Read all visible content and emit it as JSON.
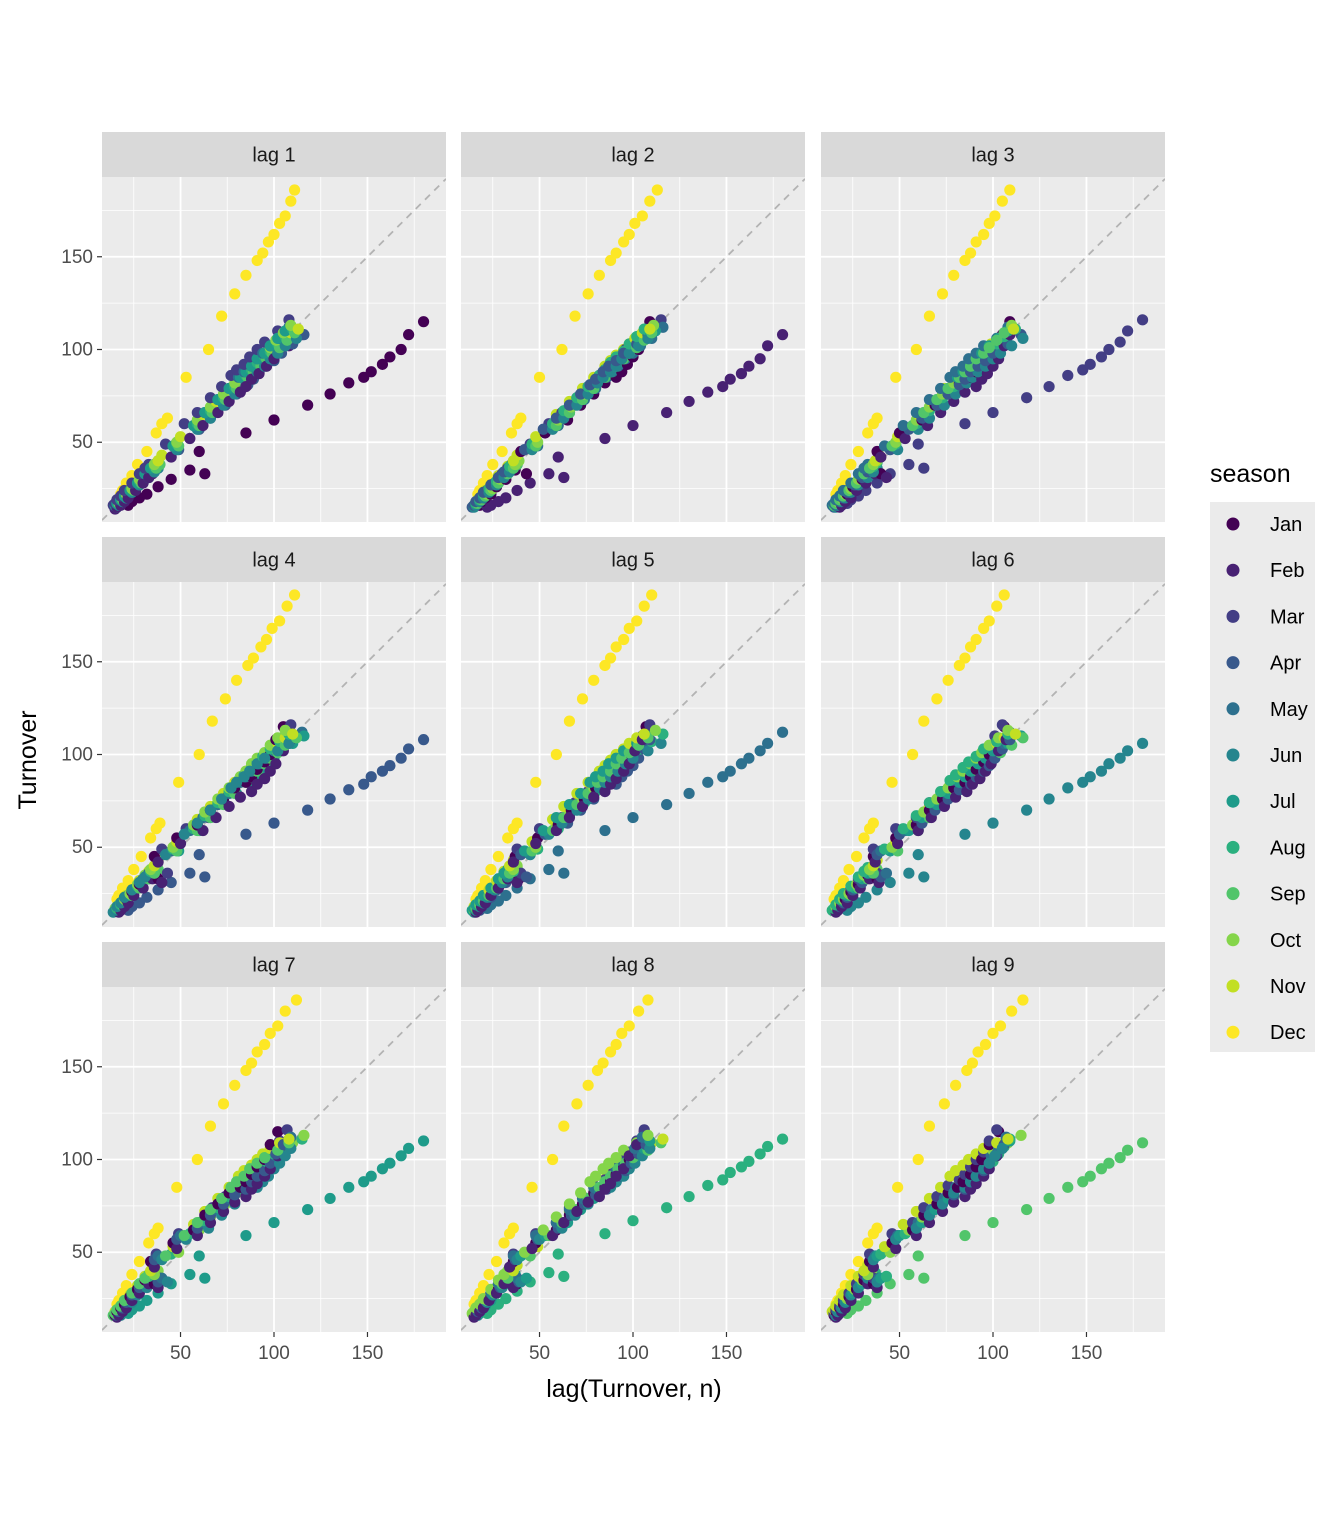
{
  "chart_data": {
    "type": "scatter",
    "layout": "facet-grid",
    "xlabel": "lag(Turnover, n)",
    "ylabel": "Turnover",
    "xlim": [
      8,
      192
    ],
    "ylim": [
      7,
      193
    ],
    "x_ticks": [
      50,
      100,
      150
    ],
    "y_ticks": [
      50,
      100,
      150
    ],
    "grid": true,
    "reference_line": "y = x (dashed grey)",
    "legend": {
      "title": "season",
      "position": "right",
      "entries": [
        {
          "label": "Jan",
          "color": "#440154"
        },
        {
          "label": "Feb",
          "color": "#482173"
        },
        {
          "label": "Mar",
          "color": "#433E85"
        },
        {
          "label": "Apr",
          "color": "#38598C"
        },
        {
          "label": "May",
          "color": "#2D708E"
        },
        {
          "label": "Jun",
          "color": "#25858E"
        },
        {
          "label": "Jul",
          "color": "#1E9B8A"
        },
        {
          "label": "Aug",
          "color": "#2BB07F"
        },
        {
          "label": "Sep",
          "color": "#51C56A"
        },
        {
          "label": "Oct",
          "color": "#85D54A"
        },
        {
          "label": "Nov",
          "color": "#C2DF23"
        },
        {
          "label": "Dec",
          "color": "#FDE725"
        }
      ]
    },
    "panels": [
      {
        "label": "lag 1",
        "lag": 1
      },
      {
        "label": "lag 2",
        "lag": 2
      },
      {
        "label": "lag 3",
        "lag": 3
      },
      {
        "label": "lag 4",
        "lag": 4
      },
      {
        "label": "lag 5",
        "lag": 5
      },
      {
        "label": "lag 6",
        "lag": 6
      },
      {
        "label": "lag 7",
        "lag": 7
      },
      {
        "label": "lag 8",
        "lag": 8
      },
      {
        "label": "lag 9",
        "lag": 9
      }
    ],
    "monthly_turnover_by_year": {
      "Jan": [
        15,
        16,
        18,
        20,
        22,
        26,
        30,
        35,
        33,
        45,
        55,
        62,
        70,
        76,
        82,
        85,
        88,
        92,
        96,
        100,
        108,
        115
      ],
      "Feb": [
        14,
        15,
        16,
        18,
        20,
        24,
        28,
        33,
        31,
        42,
        52,
        59,
        66,
        72,
        77,
        80,
        84,
        87,
        91,
        95,
        102,
        108
      ],
      "Mar": [
        16,
        17,
        19,
        21,
        24,
        28,
        33,
        38,
        36,
        49,
        60,
        66,
        74,
        80,
        86,
        89,
        92,
        96,
        100,
        104,
        110,
        116
      ],
      "Apr": [
        15,
        16,
        18,
        20,
        23,
        27,
        31,
        36,
        34,
        46,
        57,
        63,
        70,
        76,
        81,
        84,
        88,
        91,
        94,
        98,
        103,
        108
      ],
      "May": [
        16,
        17,
        19,
        21,
        24,
        28,
        33,
        38,
        36,
        48,
        59,
        66,
        73,
        79,
        85,
        88,
        91,
        95,
        98,
        102,
        106,
        112
      ],
      "Jun": [
        15,
        16,
        18,
        20,
        23,
        27,
        31,
        36,
        34,
        46,
        57,
        63,
        70,
        76,
        82,
        85,
        88,
        91,
        95,
        98,
        102,
        106
      ],
      "Jul": [
        16,
        17,
        19,
        21,
        24,
        28,
        33,
        38,
        36,
        48,
        59,
        66,
        73,
        79,
        85,
        88,
        91,
        95,
        98,
        102,
        106,
        110
      ],
      "Aug": [
        16,
        17,
        19,
        22,
        25,
        29,
        34,
        39,
        37,
        49,
        60,
        67,
        74,
        80,
        86,
        89,
        93,
        96,
        99,
        103,
        107,
        111
      ],
      "Sep": [
        16,
        17,
        19,
        21,
        24,
        28,
        33,
        38,
        36,
        48,
        59,
        66,
        73,
        79,
        85,
        88,
        91,
        95,
        98,
        101,
        105,
        109
      ],
      "Oct": [
        17,
        18,
        20,
        22,
        25,
        30,
        35,
        40,
        38,
        50,
        62,
        69,
        76,
        82,
        88,
        91,
        95,
        98,
        101,
        105,
        109,
        113
      ],
      "Nov": [
        18,
        19,
        21,
        24,
        27,
        32,
        37,
        43,
        40,
        53,
        65,
        72,
        79,
        85,
        91,
        94,
        97,
        100,
        103,
        106,
        109,
        111
      ],
      "Dec": [
        22,
        24,
        28,
        32,
        38,
        45,
        55,
        63,
        60,
        85,
        100,
        118,
        130,
        140,
        148,
        152,
        158,
        162,
        168,
        172,
        180,
        186
      ]
    }
  }
}
